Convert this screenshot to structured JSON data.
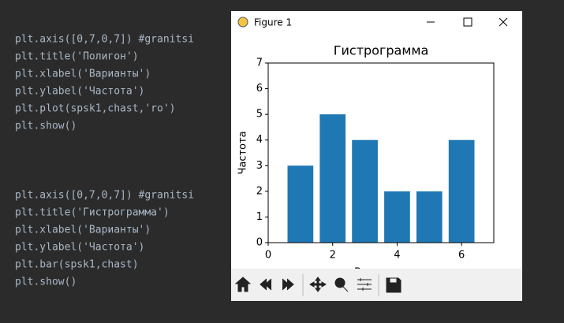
{
  "editor": {
    "code_blocks": [
      [
        "plt.axis([0,7,0,7]) #granitsi",
        "plt.title('Полигон')",
        "plt.xlabel('Варианты')",
        "plt.ylabel('Частота')",
        "plt.plot(spsk1,chast,'ro')",
        "plt.show()"
      ],
      [
        "plt.axis([0,7,0,7]) #granitsi",
        "plt.title('Гистрограмма')",
        "plt.xlabel('Варианты')",
        "plt.ylabel('Частота')",
        "plt.bar(spsk1,chast)",
        "plt.show()"
      ]
    ]
  },
  "window": {
    "title": "Figure 1"
  },
  "chart_data": {
    "type": "bar",
    "title": "Гистрограмма",
    "x_label": "Варианты",
    "y_label": "Частота",
    "x": [
      1,
      2,
      3,
      4,
      5,
      6
    ],
    "values": [
      3,
      5,
      4,
      2,
      2,
      4
    ],
    "color": "#1f77b4",
    "bar_width": 0.8,
    "xlim": [
      0,
      7
    ],
    "ylim": [
      0,
      7
    ],
    "xticks": [
      0,
      2,
      4,
      6
    ],
    "yticks": [
      0,
      1,
      2,
      3,
      4,
      5,
      6,
      7
    ]
  }
}
